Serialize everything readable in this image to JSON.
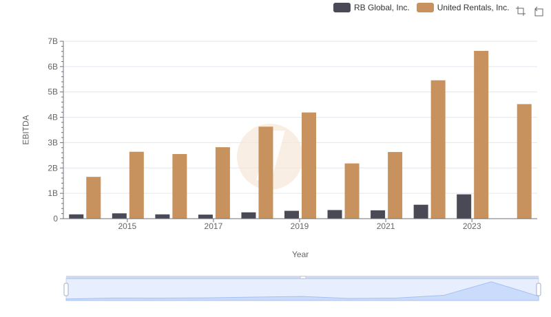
{
  "legend": {
    "items": [
      {
        "name": "RB Global, Inc.",
        "color": "#4a4a56"
      },
      {
        "name": "United Rentals, Inc.",
        "color": "#c8925f"
      }
    ]
  },
  "toolbox": {
    "zoom_icon": "zoom-icon",
    "restore_icon": "restore-icon"
  },
  "chart_data": {
    "type": "bar",
    "xlabel": "Year",
    "ylabel": "EBITDA",
    "ylim": [
      0,
      7000000000
    ],
    "y_ticks": [
      "0",
      "1B",
      "2B",
      "3B",
      "4B",
      "5B",
      "6B",
      "7B"
    ],
    "x_tick_labels": [
      "2015",
      "2017",
      "2019",
      "2021",
      "2023"
    ],
    "categories": [
      "2014",
      "2015",
      "2016",
      "2017",
      "2018",
      "2019",
      "2020",
      "2021",
      "2022",
      "2023",
      "2024"
    ],
    "series": [
      {
        "name": "RB Global, Inc.",
        "color": "#4a4a56",
        "values": [
          170000000,
          210000000,
          170000000,
          160000000,
          250000000,
          310000000,
          340000000,
          330000000,
          550000000,
          960000000,
          null
        ]
      },
      {
        "name": "United Rentals, Inc.",
        "color": "#c8925f",
        "values": [
          1650000000,
          2640000000,
          2550000000,
          2820000000,
          3630000000,
          4190000000,
          2180000000,
          2630000000,
          5460000000,
          6620000000,
          4520000000
        ]
      }
    ]
  }
}
